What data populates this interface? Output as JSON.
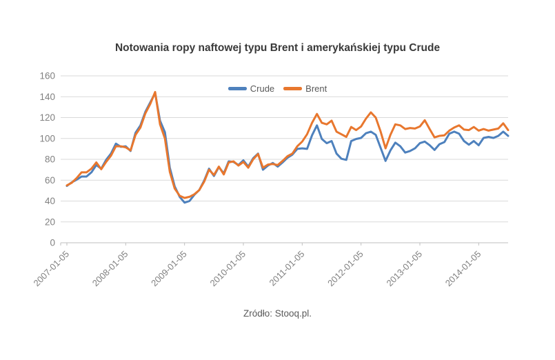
{
  "chart_data": {
    "type": "line",
    "title": "Notowania ropy naftowej typu Brent i amerykańskiej typu Crude",
    "source": "Zródło: Stooq.pl.",
    "x_start": "2007-01",
    "x_interval": "1 month",
    "n_points": 91,
    "x_tick_labels": [
      "2007-01-05",
      "2008-01-05",
      "2009-01-05",
      "2010-01-05",
      "2011-01-05",
      "2012-01-05",
      "2013-01-05",
      "2014-01-05"
    ],
    "x_tick_indices": [
      0,
      12,
      24,
      36,
      48,
      60,
      72,
      84
    ],
    "ylim": [
      0,
      160
    ],
    "y_ticks": [
      0,
      20,
      40,
      60,
      80,
      100,
      120,
      140,
      160
    ],
    "grid": true,
    "legend_position": "top-center-inside",
    "series": [
      {
        "name": "Crude",
        "color": "#4E81BD",
        "values": [
          54.5,
          58,
          60.5,
          63.5,
          63.5,
          67.5,
          74.5,
          71,
          79.5,
          85.5,
          95,
          92,
          92.5,
          88,
          105.5,
          112.5,
          125.5,
          134.5,
          143.5,
          117,
          106,
          72,
          54,
          44,
          38.5,
          40,
          46,
          50.5,
          59.5,
          71,
          64,
          72.5,
          66.5,
          78,
          77.5,
          74.5,
          79,
          73,
          81,
          85.5,
          70,
          74,
          76.5,
          73,
          77,
          81.5,
          84.5,
          90,
          90.5,
          90,
          103,
          112.5,
          99.5,
          95.5,
          97.5,
          85.5,
          80.5,
          79.5,
          97.5,
          99.5,
          100.5,
          105,
          106.5,
          103.5,
          91,
          78.5,
          88.5,
          96,
          92.5,
          86.5,
          88,
          90.5,
          95.5,
          97,
          93.5,
          89,
          94.5,
          96.5,
          104.5,
          106.5,
          104.5,
          97.5,
          94,
          97.5,
          93.5,
          100.5,
          101.5,
          100.5,
          102.5,
          106.5,
          102.5
        ]
      },
      {
        "name": "Brent",
        "color": "#E8772E",
        "values": [
          55,
          57.5,
          62,
          67.5,
          67.5,
          71,
          77,
          70.5,
          77.5,
          83.5,
          92.5,
          92.5,
          91.5,
          88.5,
          103.5,
          110.5,
          124,
          133,
          144.5,
          113.5,
          100,
          68,
          52,
          45,
          43,
          44,
          46.5,
          50.5,
          58.5,
          70,
          65,
          73,
          65.5,
          77,
          78,
          74,
          77.5,
          72,
          80,
          85,
          72,
          75,
          75.5,
          74.5,
          78.5,
          83,
          85.5,
          92.5,
          97,
          104,
          115,
          123.5,
          115,
          113.5,
          117,
          106.5,
          104,
          101.5,
          111,
          108,
          111.5,
          119,
          125,
          120,
          106.5,
          90.5,
          103.5,
          113.5,
          112.5,
          109,
          110,
          109.5,
          111.5,
          117.5,
          109,
          101,
          102.5,
          103,
          107.5,
          110.5,
          112.5,
          108.5,
          108,
          111,
          107.5,
          109,
          107.5,
          108.5,
          109.5,
          114.5,
          108
        ]
      }
    ],
    "colors": {
      "background": "#FFFFFF",
      "grid": "#D9D9D9",
      "axis": "#BFBFBF",
      "tick_label": "#808080",
      "title_text": "#3A3A3A",
      "legend_text": "#595959",
      "crude_line": "#4E81BD",
      "brent_line": "#E8772E"
    }
  }
}
